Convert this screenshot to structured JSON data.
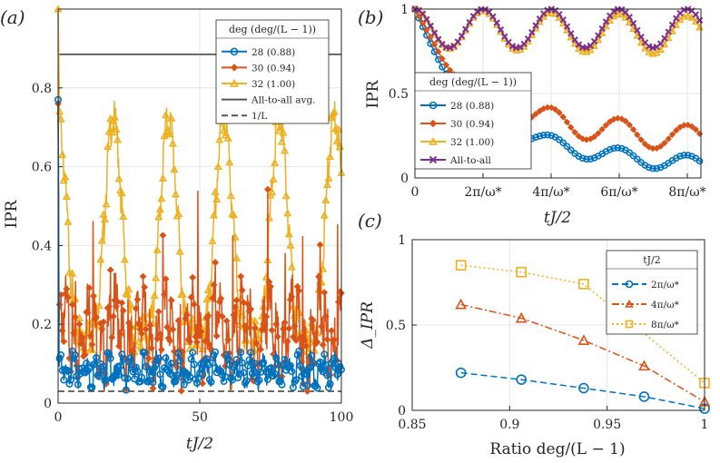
{
  "chart_data": [
    {
      "id": "a",
      "panel_label": "(a)",
      "type": "line",
      "xlabel": "tJ/2",
      "ylabel": "IPR",
      "xlim": [
        0,
        100
      ],
      "ylim": [
        0,
        1
      ],
      "xticks": [
        0,
        50,
        100
      ],
      "xtick_labels": [
        "0",
        "50",
        "100"
      ],
      "yticks": [
        0,
        0.2,
        0.4,
        0.6,
        0.8
      ],
      "ytick_labels": [
        "0",
        "0.2",
        "0.4",
        "0.6",
        "0.8"
      ],
      "legend_title": "deg (deg/(L − 1))",
      "series": [
        {
          "name": "28 (0.88)",
          "color": "#0072BD",
          "marker": "circle",
          "mean": 0.09,
          "amplitude": 0.02,
          "period": 4.2,
          "start": 0.77
        },
        {
          "name": "30 (0.94)",
          "color": "#D95319",
          "marker": "diamond",
          "mean": 0.2,
          "amplitude": 0.06,
          "period": 9.0,
          "start": 0.76
        },
        {
          "name": "32 (1.00)",
          "color": "#EDB120",
          "marker": "triangle",
          "min": 0.17,
          "max": 0.72,
          "period": 19.5,
          "start": 1.0
        },
        {
          "name": "All-to-all avg.",
          "color": "#555555",
          "style": "solid",
          "y": 0.885
        },
        {
          "name": "1/L",
          "color": "#555555",
          "style": "dashed",
          "y": 0.03
        }
      ]
    },
    {
      "id": "b",
      "panel_label": "(b)",
      "type": "line",
      "xlabel": "tJ/2",
      "ylabel": "IPR",
      "xlim": [
        0,
        8.4
      ],
      "ylim": [
        0,
        1
      ],
      "xticks": [
        0,
        2,
        4,
        6,
        8
      ],
      "xtick_labels": [
        "0",
        "2π/ω*",
        "4π/ω*",
        "6π/ω*",
        "8π/ω*"
      ],
      "yticks": [
        0,
        0.5,
        1
      ],
      "ytick_labels": [
        "0",
        "0.5",
        "1"
      ],
      "legend_title": "deg (deg/(L − 1))",
      "series": [
        {
          "name": "28 (0.88)",
          "color": "#0072BD",
          "marker": "circle",
          "start": 1.0,
          "settle": 0.2,
          "amplitude": 0.05,
          "period": 2.0
        },
        {
          "name": "30 (0.94)",
          "color": "#D95319",
          "marker": "diamond",
          "start": 1.0,
          "settle": 0.35,
          "amplitude": 0.08,
          "period": 2.0
        },
        {
          "name": "32 (1.00)",
          "color": "#EDB120",
          "marker": "triangle",
          "min": 0.77,
          "max": 1.0,
          "period": 2.0
        },
        {
          "name": "All-to-all",
          "color": "#7E2F8E",
          "marker": "x",
          "min": 0.77,
          "max": 1.0,
          "period": 2.0
        }
      ]
    },
    {
      "id": "c",
      "panel_label": "(c)",
      "type": "line",
      "xlabel": "Ratio deg/(L − 1)",
      "ylabel": "Δ_IPR",
      "xlim": [
        0.85,
        1.0
      ],
      "ylim": [
        0,
        1
      ],
      "xticks": [
        0.85,
        0.9,
        0.95,
        1
      ],
      "xtick_labels": [
        "0.85",
        "0.9",
        "0.95",
        "1"
      ],
      "yticks": [
        0,
        0.5,
        1
      ],
      "ytick_labels": [
        "0",
        "0.5",
        "1"
      ],
      "legend_title": "tJ/2",
      "x": [
        0.875,
        0.906,
        0.938,
        0.969,
        1.0
      ],
      "series": [
        {
          "name": "2π/ω*",
          "color": "#0072BD",
          "marker": "circle",
          "style": "dashed",
          "values": [
            0.22,
            0.18,
            0.13,
            0.08,
            0.01
          ]
        },
        {
          "name": "4π/ω*",
          "color": "#D95319",
          "marker": "triangle",
          "style": "dashdot",
          "values": [
            0.62,
            0.54,
            0.41,
            0.26,
            0.05
          ]
        },
        {
          "name": "8π/ω*",
          "color": "#EDB120",
          "marker": "square",
          "style": "dotted",
          "values": [
            0.85,
            0.81,
            0.74,
            null,
            0.16
          ]
        }
      ]
    }
  ]
}
